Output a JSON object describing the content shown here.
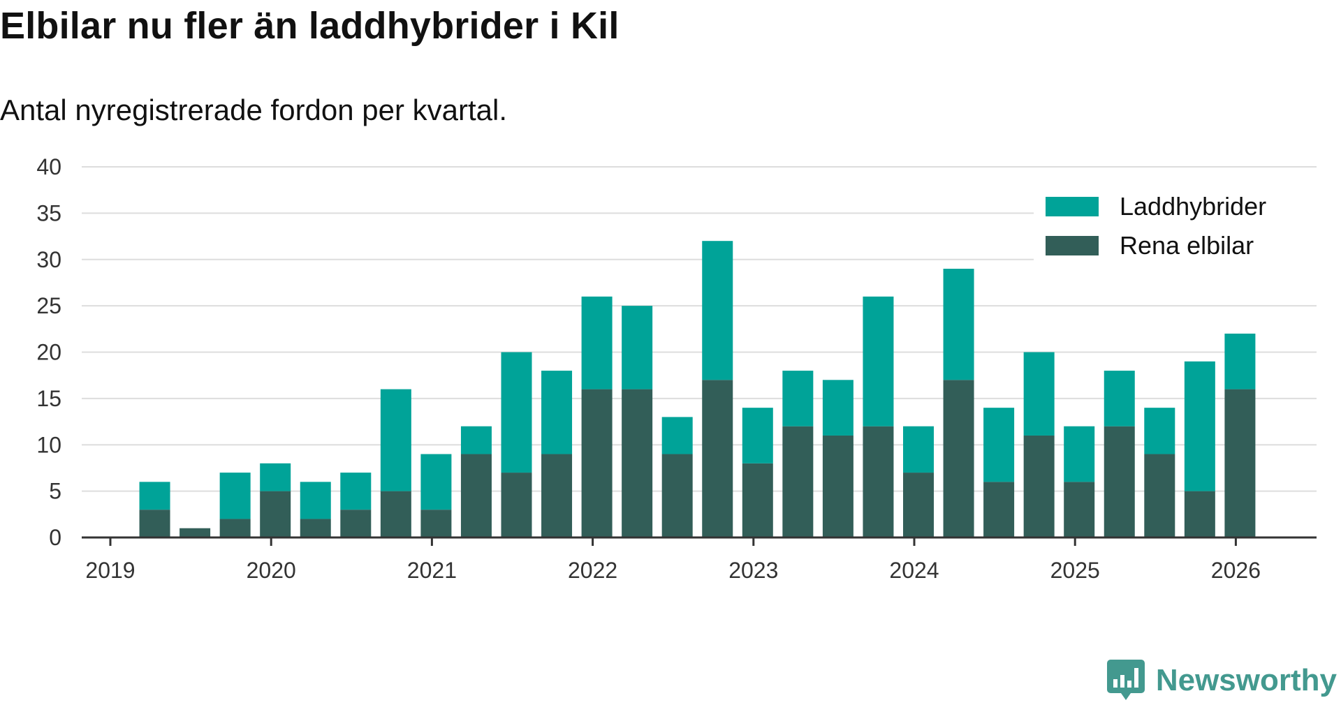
{
  "header": {
    "title": "Elbilar nu fler än laddhybrider i Kil",
    "subtitle": "Antal nyregistrerade fordon per kvartal."
  },
  "brand": {
    "name": "Newsworthy",
    "logo_icon": "newsworthy-logo-icon",
    "color": "#43998f"
  },
  "colors": {
    "laddhybrider": "#00a398",
    "rena_elbilar": "#325e58",
    "grid": "#dddddd",
    "axis": "#333333"
  },
  "chart_data": {
    "type": "bar",
    "stacked": true,
    "title": "Elbilar nu fler än laddhybrider i Kil",
    "subtitle": "Antal nyregistrerade fordon per kvartal.",
    "xlabel": "",
    "ylabel": "",
    "ylim": [
      0,
      40
    ],
    "yticks": [
      0,
      5,
      10,
      15,
      20,
      25,
      30,
      35,
      40
    ],
    "xticks": [
      "2019",
      "2020",
      "2021",
      "2022",
      "2023",
      "2024",
      "2025",
      "2026"
    ],
    "grid": "horizontal",
    "legend_position": "top-right",
    "categories": [
      "2019 Q1",
      "2019 Q2",
      "2019 Q3",
      "2019 Q4",
      "2020 Q1",
      "2020 Q2",
      "2020 Q3",
      "2020 Q4",
      "2021 Q1",
      "2021 Q2",
      "2021 Q3",
      "2021 Q4",
      "2022 Q1",
      "2022 Q2",
      "2022 Q3",
      "2022 Q4",
      "2023 Q1",
      "2023 Q2",
      "2023 Q3",
      "2023 Q4",
      "2024 Q1",
      "2024 Q2",
      "2024 Q3",
      "2024 Q4",
      "2025 Q1",
      "2025 Q2",
      "2025 Q3",
      "2025 Q4",
      "2026 Q1"
    ],
    "series": [
      {
        "name": "Rena elbilar",
        "color": "#325e58",
        "values": [
          0,
          3,
          1,
          2,
          5,
          2,
          3,
          5,
          3,
          9,
          7,
          9,
          16,
          16,
          9,
          17,
          8,
          12,
          11,
          12,
          7,
          17,
          6,
          11,
          6,
          12,
          9,
          5,
          16
        ]
      },
      {
        "name": "Laddhybrider",
        "color": "#00a398",
        "values": [
          0,
          3,
          0,
          5,
          3,
          4,
          4,
          11,
          6,
          3,
          13,
          9,
          10,
          9,
          4,
          15,
          6,
          6,
          6,
          14,
          5,
          12,
          8,
          9,
          6,
          6,
          5,
          14,
          6
        ]
      }
    ],
    "legend": [
      "Laddhybrider",
      "Rena elbilar"
    ]
  }
}
